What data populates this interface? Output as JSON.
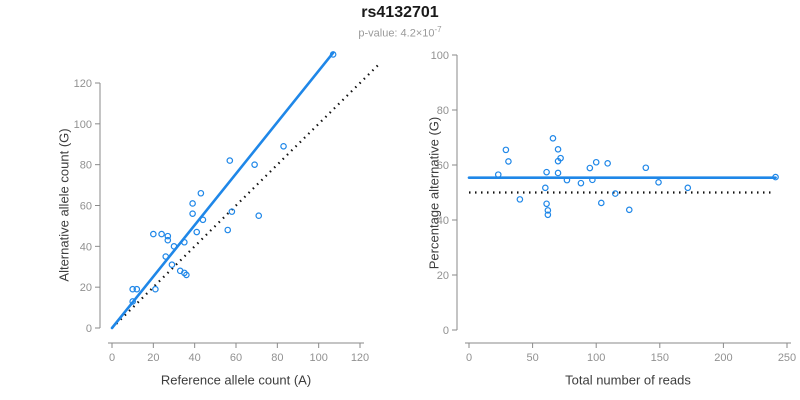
{
  "header": {
    "title": "rs4132701",
    "p_value": {
      "text": "p-value: 4.2×10",
      "exponent": "-7"
    }
  },
  "colors": {
    "accent_blue": "#1F87E8",
    "identity_line_black": "#111111",
    "axis_gray": "#8a8a8a",
    "tick_label_gray": "#919191",
    "axis_title_gray": "#3d3d3d",
    "subtitle_gray": "#9a9a9a"
  },
  "chart_data": [
    {
      "id": "allele-count-scatter",
      "type": "scatter",
      "xlabel": "Reference allele count (A)",
      "ylabel": "Alternative allele count (G)",
      "xticks": [
        0,
        20,
        40,
        60,
        80,
        100,
        120
      ],
      "yticks": [
        0,
        20,
        40,
        60,
        80,
        100,
        120
      ],
      "xlim": [
        0,
        130
      ],
      "ylim": [
        0,
        135
      ],
      "point_color": "#1F87E8",
      "points": [
        [
          10,
          13
        ],
        [
          10,
          19
        ],
        [
          12,
          19
        ],
        [
          21,
          19
        ],
        [
          20,
          46
        ],
        [
          24,
          46
        ],
        [
          27,
          45
        ],
        [
          27,
          43
        ],
        [
          30,
          40
        ],
        [
          26,
          35
        ],
        [
          29,
          31
        ],
        [
          33,
          28
        ],
        [
          35,
          27
        ],
        [
          36,
          26
        ],
        [
          35,
          42
        ],
        [
          41,
          47
        ],
        [
          44,
          53
        ],
        [
          39,
          56
        ],
        [
          39,
          61
        ],
        [
          43,
          66
        ],
        [
          56,
          48
        ],
        [
          58,
          57
        ],
        [
          57,
          82
        ],
        [
          69,
          80
        ],
        [
          71,
          55
        ],
        [
          83,
          89
        ],
        [
          107,
          134
        ]
      ],
      "lines": [
        {
          "name": "identity-line",
          "style": "dotted",
          "color": "#111111",
          "width": 2.2,
          "x1": 0,
          "y1": 0,
          "x2": 130,
          "y2": 130
        },
        {
          "name": "regression-line",
          "style": "solid",
          "color": "#1F87E8",
          "width": 2.6,
          "x1": 0,
          "y1": 0,
          "x2": 107,
          "y2": 134.8
        }
      ]
    },
    {
      "id": "percentage-alternative-scatter",
      "type": "scatter",
      "xlabel": "Total number of reads",
      "ylabel": "Percentage alternative (G)",
      "xticks": [
        0,
        50,
        100,
        150,
        200,
        250
      ],
      "yticks": [
        0,
        20,
        40,
        60,
        80,
        100
      ],
      "xlim": [
        0,
        250
      ],
      "ylim": [
        0,
        100
      ],
      "point_color": "#1F87E8",
      "points": [
        [
          23,
          56.5
        ],
        [
          29,
          65.5
        ],
        [
          31,
          61.3
        ],
        [
          40,
          47.5
        ],
        [
          66,
          69.7
        ],
        [
          70,
          65.7
        ],
        [
          72,
          62.5
        ],
        [
          70,
          61.4
        ],
        [
          70,
          57.1
        ],
        [
          61,
          57.4
        ],
        [
          60,
          51.7
        ],
        [
          61,
          45.9
        ],
        [
          62,
          43.5
        ],
        [
          62,
          41.9
        ],
        [
          77,
          54.5
        ],
        [
          88,
          53.4
        ],
        [
          97,
          54.6
        ],
        [
          95,
          58.9
        ],
        [
          100,
          61.0
        ],
        [
          109,
          60.6
        ],
        [
          104,
          46.2
        ],
        [
          115,
          49.6
        ],
        [
          139,
          59.0
        ],
        [
          149,
          53.7
        ],
        [
          126,
          43.7
        ],
        [
          172,
          51.7
        ],
        [
          241,
          55.6
        ]
      ],
      "lines": [
        {
          "name": "reference-50pct-line",
          "style": "dotted",
          "color": "#111111",
          "width": 2.2,
          "x1": 0,
          "y1": 50,
          "x2": 237,
          "y2": 50
        },
        {
          "name": "mean-percentage-line",
          "style": "solid",
          "color": "#1F87E8",
          "width": 2.6,
          "x1": 0,
          "y1": 55.4,
          "x2": 241,
          "y2": 55.4
        }
      ]
    }
  ]
}
